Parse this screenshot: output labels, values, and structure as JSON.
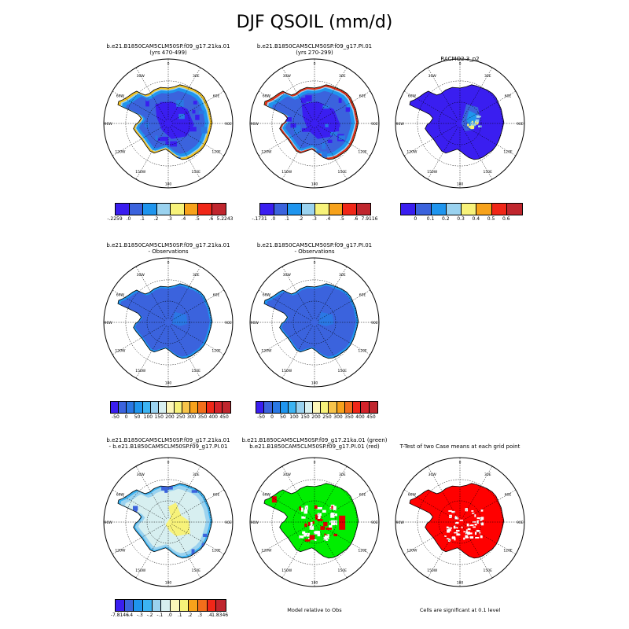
{
  "page_title": "DJF QSOIL (mm/d)",
  "chart_data": [
    {
      "type": "heatmap",
      "subtitle": [
        "b.e21.B1850CAM5CLM50SP.f09_g17.21ka.01",
        "(yrs 470-499)"
      ],
      "map_style": "model_a",
      "colorbar": {
        "colors": [
          "#3a1ef0",
          "#3b63dd",
          "#1f95ee",
          "#9ad2ef",
          "#f7f27a",
          "#f7a21b",
          "#f02718",
          "#c0262e"
        ],
        "labels": [
          "-.2259",
          ".0",
          ".1",
          ".2",
          ".3",
          ".4",
          ".5",
          ".6",
          "5.2243"
        ]
      }
    },
    {
      "type": "heatmap",
      "subtitle": [
        "b.e21.B1850CAM5CLM50SP.f09_g17.PI.01",
        "(yrs 270-299)"
      ],
      "map_style": "model_b",
      "colorbar": {
        "colors": [
          "#3a1ef0",
          "#3b63dd",
          "#1f95ee",
          "#9ad2ef",
          "#f7f27a",
          "#f7a21b",
          "#f02718",
          "#c0262e"
        ],
        "labels": [
          "-.1731",
          ".0",
          ".1",
          ".2",
          ".3",
          ".4",
          ".5",
          ".6",
          "7.9116"
        ]
      }
    },
    {
      "type": "heatmap",
      "subtitle": [
        "RACMO2.3_p2"
      ],
      "map_style": "obs",
      "colorbar": {
        "colors": [
          "#3a1ef0",
          "#3b63dd",
          "#1f95ee",
          "#9ad2ef",
          "#f7f27a",
          "#f7a21b",
          "#f02718",
          "#c0262e"
        ],
        "labels": [
          "0",
          "0.1",
          "0.2",
          "0.3",
          "0.4",
          "0.5",
          "0.6"
        ],
        "interior_labels": true
      }
    },
    {
      "type": "heatmap",
      "subtitle": [
        "b.e21.B1850CAM5CLM50SP.f09_g17.21ka.01",
        "- Observations"
      ],
      "map_style": "diff_obs",
      "colorbar": {
        "colors": [
          "#3a1ef0",
          "#3b63dd",
          "#2a78e4",
          "#1f95ee",
          "#3cb3f2",
          "#9ad2ef",
          "#d7eff0",
          "#fcf6b9",
          "#f7f27a",
          "#f7c44a",
          "#f7a21b",
          "#f26e1b",
          "#f02718",
          "#d4222a",
          "#c0262e"
        ],
        "labels": [
          "-50",
          "0",
          "50",
          "100",
          "150",
          "200",
          "250",
          "300",
          "350",
          "400",
          "450"
        ]
      }
    },
    {
      "type": "heatmap",
      "subtitle": [
        "b.e21.B1850CAM5CLM50SP.f09_g17.PI.01",
        "- Observations"
      ],
      "map_style": "diff_obs",
      "colorbar": {
        "colors": [
          "#3a1ef0",
          "#3b63dd",
          "#2a78e4",
          "#1f95ee",
          "#3cb3f2",
          "#9ad2ef",
          "#d7eff0",
          "#fcf6b9",
          "#f7f27a",
          "#f7c44a",
          "#f7a21b",
          "#f26e1b",
          "#f02718",
          "#d4222a",
          "#c0262e"
        ],
        "labels": [
          "-50",
          "0",
          "50",
          "100",
          "150",
          "200",
          "250",
          "300",
          "350",
          "400",
          "450"
        ]
      }
    },
    {
      "type": "heatmap",
      "subtitle": [
        "b.e21.B1850CAM5CLM50SP.f09_g17.21ka.01",
        "- b.e21.B1850CAM5CLM50SP.f09_g17.PI.01"
      ],
      "map_style": "diff_cases",
      "colorbar": {
        "colors": [
          "#3a1ef0",
          "#3b63dd",
          "#1f95ee",
          "#3cb3f2",
          "#9ad2ef",
          "#d7eff0",
          "#fcf6b9",
          "#f7f27a",
          "#f7a21b",
          "#f26e1b",
          "#f02718",
          "#c0262e"
        ],
        "labels": [
          "-7.8146",
          "-.4",
          "-.3",
          "-.2",
          "-.1",
          ".0",
          ".1",
          ".2",
          ".3",
          ".4",
          "1.8346"
        ]
      }
    },
    {
      "type": "heatmap",
      "subtitle": [
        "b.e21.B1850CAM5CLM50SP.f09_g17.21ka.01 (green)",
        "b.e21.B1850CAM5CLM50SP.f09_g17.PI.01 (red)"
      ],
      "map_style": "relative",
      "caption": "Model relative to Obs"
    },
    {
      "type": "heatmap",
      "subtitle": [
        "T-Test of two Case means at each grid point"
      ],
      "map_style": "ttest",
      "caption": "Cells are significant at 0.1 level"
    }
  ],
  "map_labels": {
    "lon_labels": [
      "0",
      "30E",
      "60E",
      "90E",
      "120E",
      "150E",
      "180",
      "150W",
      "120W",
      "90W",
      "60W",
      "30W"
    ]
  }
}
